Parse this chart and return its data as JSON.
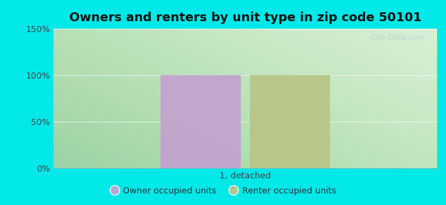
{
  "title": "Owners and renters by unit type in zip code 50101",
  "categories": [
    "1, detached"
  ],
  "owner_values": [
    100
  ],
  "renter_values": [
    100
  ],
  "owner_color": "#c4a0d0",
  "renter_color": "#b8c485",
  "ylim": [
    0,
    150
  ],
  "yticks": [
    0,
    50,
    100,
    150
  ],
  "ytick_labels": [
    "0%",
    "50%",
    "100%",
    "150%"
  ],
  "background_color": "#00e8e8",
  "legend_owner": "Owner occupied units",
  "legend_renter": "Renter occupied units",
  "watermark": "City-Data.com",
  "title_fontsize": 13,
  "bar_width": 0.25
}
